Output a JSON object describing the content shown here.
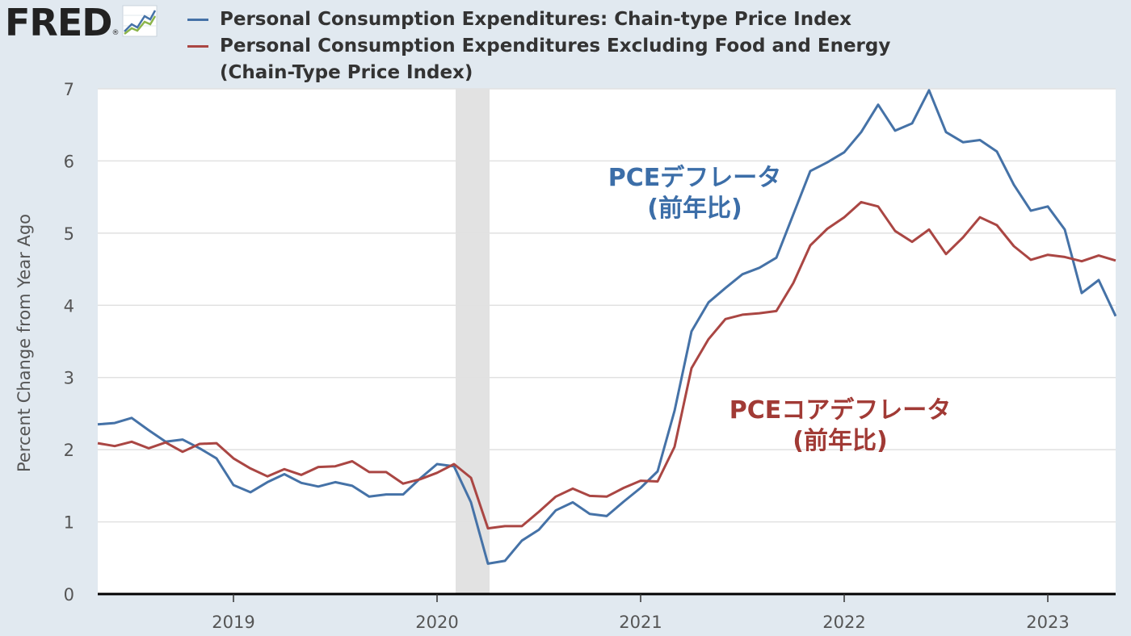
{
  "logo": {
    "text": "FRED",
    "reg": "®",
    "icon": "trend-chart-icon"
  },
  "legend": [
    {
      "label": "Personal Consumption Expenditures: Chain-type Price Index",
      "color": "#4572a7"
    },
    {
      "label": "Personal Consumption Expenditures Excluding Food and Energy (Chain-Type Price Index)",
      "color": "#aa4643"
    }
  ],
  "annotations": {
    "pce_line1": "PCEデフレータ",
    "pce_line2": "(前年比)",
    "core_line1": "PCEコアデフレータ",
    "core_line2": "(前年比)"
  },
  "chart_data": {
    "type": "line",
    "ylabel": "Percent Change from Year Ago",
    "xlabel": "",
    "ylim": [
      0,
      7
    ],
    "yticks": [
      "0",
      "1",
      "2",
      "3",
      "4",
      "5",
      "6",
      "7"
    ],
    "xticks": [
      "2019",
      "2020",
      "2021",
      "2022",
      "2023"
    ],
    "x_start": "2018-05",
    "recession_shading": [
      "2020-02",
      "2020-04"
    ],
    "series": [
      {
        "name": "Personal Consumption Expenditures: Chain-type Price Index",
        "color": "#4572a7",
        "values": [
          2.35,
          2.37,
          2.44,
          2.27,
          2.11,
          2.14,
          2.02,
          1.88,
          1.51,
          1.41,
          1.55,
          1.66,
          1.54,
          1.49,
          1.55,
          1.5,
          1.35,
          1.38,
          1.38,
          1.6,
          1.8,
          1.77,
          1.27,
          0.42,
          0.46,
          0.74,
          0.89,
          1.16,
          1.27,
          1.11,
          1.08,
          1.28,
          1.47,
          1.7,
          2.54,
          3.64,
          4.04,
          4.24,
          4.43,
          4.52,
          4.66,
          5.26,
          5.86,
          5.98,
          6.12,
          6.4,
          6.78,
          6.42,
          6.52,
          6.98,
          6.4,
          6.26,
          6.29,
          6.13,
          5.67,
          5.31,
          5.37,
          5.05,
          4.17,
          4.35,
          3.85
        ]
      },
      {
        "name": "Personal Consumption Expenditures Excluding Food and Energy (Chain-Type Price Index)",
        "color": "#aa4643",
        "values": [
          2.09,
          2.05,
          2.11,
          2.02,
          2.1,
          1.97,
          2.08,
          2.09,
          1.88,
          1.74,
          1.63,
          1.73,
          1.65,
          1.76,
          1.77,
          1.84,
          1.69,
          1.69,
          1.53,
          1.59,
          1.68,
          1.8,
          1.61,
          0.91,
          0.94,
          0.94,
          1.14,
          1.35,
          1.46,
          1.36,
          1.35,
          1.47,
          1.57,
          1.56,
          2.04,
          3.13,
          3.53,
          3.81,
          3.87,
          3.89,
          3.92,
          4.31,
          4.83,
          5.06,
          5.22,
          5.43,
          5.37,
          5.03,
          4.88,
          5.05,
          4.71,
          4.94,
          5.22,
          5.11,
          4.82,
          4.63,
          4.7,
          4.67,
          4.61,
          4.69,
          4.62
        ]
      }
    ]
  }
}
